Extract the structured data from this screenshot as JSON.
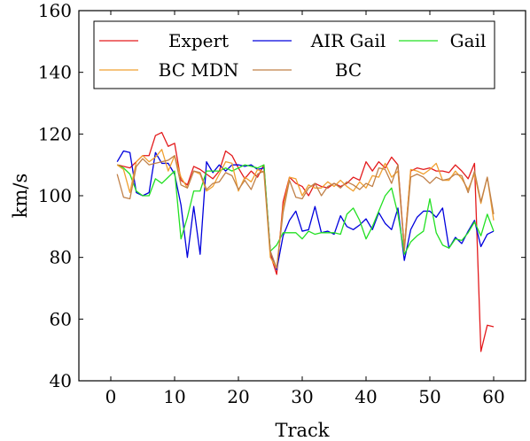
{
  "chart_data": {
    "type": "line",
    "title": "",
    "xlabel": "Track",
    "ylabel": "km/s",
    "xlim": [
      -5,
      65
    ],
    "ylim": [
      40,
      160
    ],
    "xticks": [
      0,
      10,
      20,
      30,
      40,
      50,
      60
    ],
    "yticks": [
      40,
      60,
      80,
      100,
      120,
      140,
      160
    ],
    "grid": false,
    "legend_position": "top",
    "x": [
      1,
      2,
      3,
      4,
      5,
      6,
      7,
      8,
      9,
      10,
      11,
      12,
      13,
      14,
      15,
      16,
      17,
      18,
      19,
      20,
      21,
      22,
      23,
      24,
      25,
      26,
      27,
      28,
      29,
      30,
      31,
      32,
      33,
      34,
      35,
      36,
      37,
      38,
      39,
      40,
      41,
      42,
      43,
      44,
      45,
      46,
      47,
      48,
      49,
      50,
      51,
      52,
      53,
      54,
      55,
      56,
      57,
      58,
      59,
      60
    ],
    "series": [
      {
        "name": "Expert",
        "color": "#e31a1c",
        "values": [
          110,
          109.5,
          109,
          111,
          113,
          113,
          119.5,
          120.5,
          116,
          117,
          105,
          103.5,
          109.5,
          108.5,
          107,
          105.5,
          108,
          114.5,
          113,
          109,
          105.5,
          108,
          106,
          110,
          81,
          74.5,
          98,
          106,
          104,
          103,
          100,
          104,
          103,
          102.5,
          104,
          103,
          104,
          106,
          105,
          111,
          108,
          111,
          109,
          112.5,
          110,
          83,
          108,
          109,
          108.5,
          109,
          108,
          108,
          107.5,
          110,
          108,
          105.5,
          110.5,
          49.5,
          58,
          57.5
        ]
      },
      {
        "name": "AIR Gail",
        "color": "#0000dd",
        "values": [
          111,
          114.5,
          114,
          101,
          100,
          101,
          114,
          110.5,
          110.5,
          107,
          97,
          80,
          96.5,
          81,
          111,
          107.5,
          110,
          108,
          110,
          110,
          109.5,
          110,
          108.5,
          109,
          82,
          76,
          87,
          92,
          95,
          88.5,
          89,
          96.5,
          88,
          88.5,
          87.5,
          93.5,
          90,
          89,
          90.5,
          92.5,
          89,
          94.5,
          91,
          89,
          96,
          79,
          89,
          93,
          95,
          95,
          93,
          96,
          83,
          86.5,
          84.5,
          88.5,
          92,
          83.5,
          87.5,
          88.5
        ]
      },
      {
        "name": "Gail",
        "color": "#22e022",
        "values": [
          110,
          109,
          107,
          101.5,
          100,
          100,
          105.5,
          104,
          106,
          108,
          86,
          93,
          101.5,
          101.5,
          108,
          108,
          108,
          109,
          108,
          109,
          110,
          109.5,
          109,
          110,
          82,
          84,
          88,
          88,
          88,
          86,
          88.5,
          87.5,
          88,
          88,
          88,
          87.5,
          94,
          96,
          92,
          86,
          90,
          95,
          100,
          102.5,
          94,
          81,
          85,
          87,
          88.5,
          99,
          88,
          84,
          83,
          86,
          85.5,
          88,
          91.5,
          87,
          94,
          88.5
        ]
      },
      {
        "name": "BC MDN",
        "color": "#f0a030",
        "values": [
          110,
          108.5,
          101,
          111,
          113,
          111,
          112.5,
          115,
          108,
          113,
          106,
          102.5,
          108,
          107,
          101.5,
          103,
          107,
          111,
          110.5,
          101.5,
          106,
          104.5,
          108.5,
          107.5,
          80,
          76.5,
          96,
          106,
          105.5,
          100,
          103.5,
          102.5,
          102.5,
          104.5,
          103,
          105,
          103,
          101.5,
          104.5,
          102.5,
          106.5,
          106,
          110.5,
          106,
          108,
          83,
          108.5,
          108,
          107,
          108.5,
          110.5,
          105,
          105,
          108,
          105.5,
          102,
          107,
          97.5,
          106,
          92
        ]
      },
      {
        "name": "BC",
        "color": "#c08048",
        "values": [
          107,
          99.5,
          99,
          109.5,
          112,
          110,
          110.5,
          111,
          111.5,
          113,
          103.5,
          102.5,
          108,
          107.5,
          102,
          104,
          104.5,
          107.5,
          106.5,
          102,
          105,
          102,
          107,
          108,
          82,
          76.5,
          94.5,
          105,
          99.5,
          99,
          102.5,
          104,
          100,
          103,
          104,
          102.5,
          104.5,
          103.5,
          102,
          104,
          103,
          109,
          108.5,
          104,
          110,
          82,
          106,
          107,
          106,
          104,
          106,
          105,
          105.5,
          107,
          106.5,
          101,
          108,
          98,
          106,
          94
        ]
      }
    ]
  }
}
